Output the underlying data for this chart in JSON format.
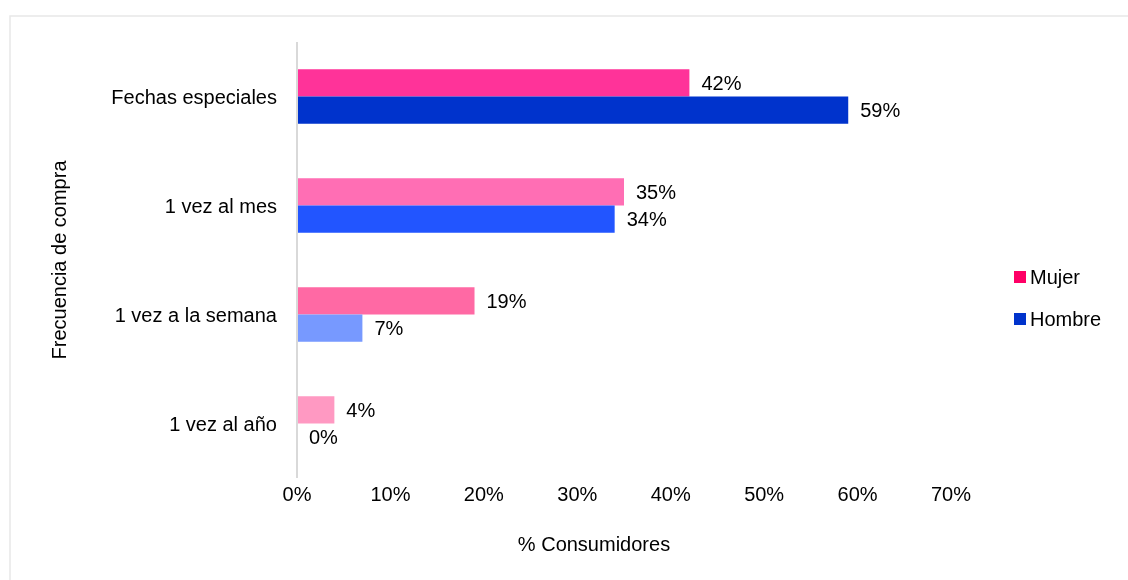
{
  "chart_data": {
    "type": "bar",
    "orientation": "horizontal",
    "xlabel": "% Consumidores",
    "ylabel": "Frecuencia de compra",
    "categories": [
      "Fechas especiales",
      "1 vez al mes",
      "1 vez a la semana",
      "1 vez al año"
    ],
    "series": [
      {
        "name": "Mujer",
        "color": "#ff0066",
        "colors": [
          "#ff3399",
          "#ff6eb4",
          "#ff69a4",
          "#ff99c2"
        ],
        "values": [
          42,
          35,
          19,
          4
        ],
        "value_labels": [
          "42%",
          "35%",
          "19%",
          "4%"
        ]
      },
      {
        "name": "Hombre",
        "color": "#0033cc",
        "colors": [
          "#0033cc",
          "#2255ff",
          "#7799ff",
          "#aabbff"
        ],
        "values": [
          59,
          34,
          7,
          0
        ],
        "value_labels": [
          "59%",
          "34%",
          "7%",
          "0%"
        ]
      }
    ],
    "xlim": [
      0,
      70
    ],
    "xticks": [
      {
        "value": 0,
        "label": "0%"
      },
      {
        "value": 10,
        "label": "10%"
      },
      {
        "value": 20,
        "label": "20%"
      },
      {
        "value": 30,
        "label": "30%"
      },
      {
        "value": 40,
        "label": "40%"
      },
      {
        "value": 50,
        "label": "50%"
      },
      {
        "value": 60,
        "label": "60%"
      },
      {
        "value": 70,
        "label": "70%"
      }
    ],
    "grid": false,
    "legend": "right"
  }
}
